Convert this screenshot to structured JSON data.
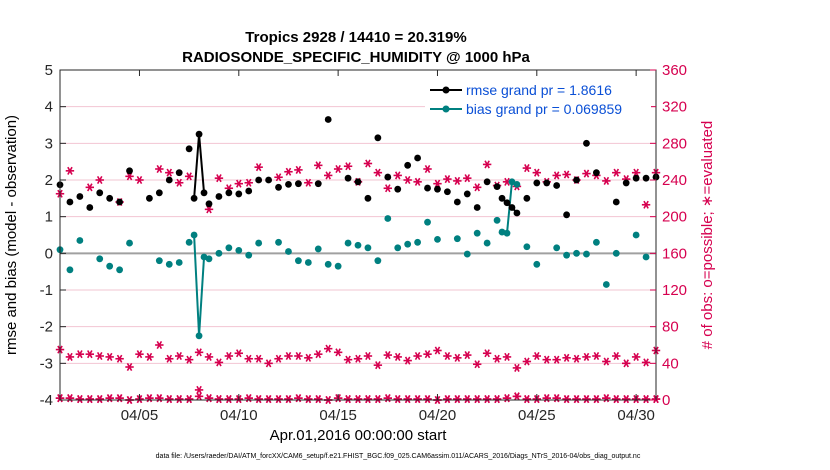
{
  "chart_data": {
    "type": "line",
    "title": "Tropics 2928 / 14410 = 20.319%",
    "subtitle": "RADIOSONDE_SPECIFIC_HUMIDITY @ 1000 hPa",
    "xlabel": "Apr.01,2016 00:00:00 start",
    "ylabel": "rmse and bias (model - observation)",
    "ylabel_right": "# of obs: o=possible; ∗=evaluated",
    "xlim": [
      1,
      31
    ],
    "ylim": [
      -4,
      5
    ],
    "ylim_right": [
      0,
      360
    ],
    "x_ticks": [
      5,
      10,
      15,
      20,
      25,
      30
    ],
    "x_tick_labels": [
      "04/05",
      "04/10",
      "04/15",
      "04/20",
      "04/25",
      "04/30"
    ],
    "y_ticks": [
      -4,
      -3,
      -2,
      -1,
      0,
      1,
      2,
      3,
      4,
      5
    ],
    "y_tick_labels": [
      "-4",
      "-3",
      "-2",
      "-1",
      "0",
      "1",
      "2",
      "3",
      "4",
      "5"
    ],
    "y_right_ticks": [
      0,
      40,
      80,
      120,
      160,
      200,
      240,
      280,
      320,
      360
    ],
    "y_right_tick_labels": [
      "0",
      "40",
      "80",
      "120",
      "160",
      "200",
      "240",
      "280",
      "320",
      "360"
    ],
    "legend": [
      {
        "name": "rmse grand pr = 1.8616",
        "color": "#000000"
      },
      {
        "name": "bias grand pr = 0.069859",
        "color": "#008080"
      }
    ],
    "colors": {
      "rmse": "#000000",
      "bias": "#008080",
      "counts": "#d6004f",
      "zero_line": "#a0a0a0"
    },
    "series": [
      {
        "name": "rmse",
        "x": [
          1.0,
          1.5,
          2.0,
          2.5,
          3.0,
          3.5,
          4.0,
          4.5,
          5.5,
          6.0,
          6.5,
          7.0,
          7.5,
          7.75,
          8.0,
          8.25,
          8.5,
          9.0,
          9.5,
          10.0,
          10.5,
          11.0,
          11.5,
          12.0,
          12.5,
          13.0,
          14.0,
          14.5,
          15.5,
          16.0,
          16.5,
          17.0,
          17.5,
          18.0,
          18.5,
          19.0,
          19.5,
          20.0,
          20.5,
          21.0,
          21.5,
          22.0,
          22.5,
          23.0,
          23.25,
          23.5,
          23.75,
          24.0,
          24.5,
          25.0,
          25.5,
          26.0,
          26.5,
          27.0,
          27.5,
          28.0,
          29.0,
          29.5,
          30.0,
          30.5,
          31.0
        ],
        "y": [
          1.87,
          1.4,
          1.55,
          1.25,
          1.65,
          1.5,
          1.4,
          2.25,
          1.5,
          1.65,
          2.0,
          2.2,
          2.85,
          1.5,
          3.25,
          1.65,
          1.35,
          1.55,
          1.65,
          1.62,
          1.7,
          2.0,
          2.0,
          1.8,
          1.88,
          1.9,
          1.9,
          3.65,
          2.05,
          1.95,
          1.5,
          3.15,
          2.08,
          1.75,
          2.4,
          2.6,
          1.78,
          1.75,
          1.68,
          1.4,
          1.62,
          1.25,
          1.95,
          1.82,
          1.5,
          1.38,
          1.25,
          1.1,
          1.5,
          1.92,
          1.92,
          1.85,
          1.05,
          2.0,
          3.0,
          2.2,
          1.4,
          1.92,
          2.05,
          2.05,
          2.08
        ],
        "connected_segments": [
          [
            7.75,
            8.0,
            8.25
          ],
          [
            23.25,
            23.5,
            23.75,
            24.0
          ]
        ]
      },
      {
        "name": "bias",
        "x": [
          1.0,
          1.5,
          2.0,
          3.0,
          3.5,
          4.0,
          4.5,
          6.0,
          6.5,
          7.0,
          7.5,
          7.75,
          8.0,
          8.25,
          8.5,
          9.0,
          9.5,
          10.0,
          10.5,
          11.0,
          12.0,
          12.5,
          13.0,
          13.5,
          14.0,
          14.5,
          15.0,
          15.5,
          16.0,
          16.5,
          17.0,
          17.5,
          18.0,
          18.5,
          19.0,
          19.5,
          20.0,
          21.0,
          21.5,
          22.0,
          22.5,
          23.0,
          23.25,
          23.5,
          23.75,
          24.0,
          24.5,
          25.0,
          26.0,
          26.5,
          27.0,
          27.5,
          28.0,
          28.5,
          29.0,
          30.0,
          30.5
        ],
        "y": [
          0.1,
          -0.45,
          0.35,
          -0.15,
          -0.35,
          -0.45,
          0.28,
          -0.2,
          -0.3,
          -0.25,
          0.3,
          0.5,
          -2.25,
          -0.1,
          -0.15,
          0.0,
          0.15,
          0.08,
          -0.05,
          0.28,
          0.3,
          0.05,
          -0.2,
          -0.25,
          0.12,
          -0.3,
          -0.35,
          0.28,
          0.22,
          0.15,
          -0.2,
          0.95,
          0.15,
          0.25,
          0.3,
          0.85,
          0.38,
          0.4,
          -0.02,
          0.55,
          0.28,
          0.9,
          0.58,
          0.55,
          1.95,
          1.88,
          0.18,
          -0.3,
          0.15,
          -0.05,
          0.0,
          -0.02,
          0.3,
          -0.85,
          0.0,
          0.5,
          -0.1
        ],
        "connected_segments": [
          [
            7.75,
            8.0,
            8.25
          ],
          [
            23.25,
            23.5,
            23.75,
            24.0
          ]
        ]
      },
      {
        "name": "obs possible",
        "axis": "right",
        "x": [
          1.0,
          1.5,
          2.0,
          2.5,
          3.0,
          3.5,
          4.0,
          4.5,
          5.0,
          5.5,
          6.0,
          6.5,
          7.0,
          7.5,
          8.0,
          8.5,
          9.0,
          9.5,
          10.0,
          10.5,
          11.0,
          11.5,
          12.0,
          12.5,
          13.0,
          13.5,
          14.0,
          14.5,
          15.0,
          15.5,
          16.0,
          16.5,
          17.0,
          17.5,
          18.0,
          18.5,
          19.0,
          19.5,
          20.0,
          20.5,
          21.0,
          21.5,
          22.0,
          22.5,
          23.0,
          23.5,
          24.0,
          24.5,
          25.0,
          25.5,
          26.0,
          26.5,
          27.0,
          27.5,
          28.0,
          28.5,
          29.0,
          29.5,
          30.0,
          30.5,
          31.0
        ],
        "y": [
          2,
          2,
          1,
          1,
          1,
          2,
          2,
          0,
          1,
          2,
          2,
          1,
          1,
          1,
          11,
          2,
          1,
          1,
          1,
          2,
          1,
          1,
          1,
          1,
          2,
          1,
          1,
          0,
          2,
          1,
          1,
          1,
          1,
          2,
          1,
          1,
          1,
          1,
          0,
          1,
          1,
          1,
          1,
          1,
          1,
          2,
          4,
          1,
          1,
          2,
          2,
          1,
          1,
          1,
          1,
          2,
          1,
          1,
          1,
          1,
          1
        ]
      },
      {
        "name": "obs evaluated",
        "axis": "right",
        "x": [
          1.0,
          1.5,
          2.0,
          2.5,
          3.0,
          3.5,
          4.0,
          4.5,
          5.0,
          5.5,
          6.0,
          6.5,
          7.0,
          7.5,
          8.0,
          8.5,
          9.0,
          9.5,
          10.0,
          10.5,
          11.0,
          11.5,
          12.0,
          12.5,
          13.0,
          13.5,
          14.0,
          14.5,
          15.0,
          15.5,
          16.0,
          16.5,
          17.0,
          17.5,
          18.0,
          18.5,
          19.0,
          19.5,
          20.0,
          20.5,
          21.0,
          21.5,
          22.0,
          22.5,
          23.0,
          23.5,
          24.0,
          24.5,
          25.0,
          25.5,
          26.0,
          26.5,
          27.0,
          27.5,
          28.0,
          28.5,
          29.0,
          29.5,
          30.0,
          30.5,
          31.0
        ],
        "y": [
          2,
          2,
          1,
          1,
          1,
          2,
          2,
          0,
          1,
          2,
          2,
          1,
          1,
          1,
          4,
          2,
          1,
          1,
          1,
          2,
          1,
          1,
          1,
          1,
          2,
          1,
          1,
          0,
          2,
          1,
          1,
          1,
          1,
          2,
          1,
          1,
          1,
          1,
          0,
          1,
          1,
          1,
          1,
          1,
          1,
          2,
          4,
          1,
          1,
          2,
          2,
          1,
          1,
          1,
          1,
          2,
          1,
          1,
          1,
          1,
          1
        ]
      },
      {
        "name": "obs possible (upper)",
        "axis": "right",
        "x": [
          1.0,
          1.5,
          2.5,
          3.0,
          4.0,
          4.5,
          5.0,
          6.0,
          6.5,
          7.0,
          7.5,
          8.5,
          9.0,
          9.5,
          10.0,
          10.5,
          11.0,
          12.0,
          12.5,
          13.0,
          13.5,
          14.0,
          14.5,
          15.0,
          15.5,
          16.0,
          16.5,
          17.0,
          17.5,
          18.0,
          18.5,
          19.0,
          19.5,
          20.0,
          20.5,
          21.0,
          21.5,
          22.0,
          22.5,
          23.0,
          23.5,
          24.0,
          24.5,
          25.0,
          25.5,
          26.0,
          26.5,
          27.0,
          27.5,
          28.0,
          28.5,
          29.0,
          29.5,
          30.0,
          30.5,
          31.0
        ],
        "y": [
          225,
          250,
          232,
          240,
          216,
          244,
          240,
          252,
          248,
          237,
          244,
          208,
          242,
          231,
          236,
          237,
          254,
          243,
          249,
          251,
          237,
          256,
          245,
          252,
          255,
          238,
          258,
          248,
          231,
          245,
          240,
          238,
          252,
          236,
          241,
          239,
          242,
          232,
          257,
          234,
          238,
          233,
          253,
          248,
          238,
          245,
          246,
          240,
          247,
          245,
          239,
          248,
          241,
          248,
          213,
          248
        ]
      },
      {
        "name": "obs evaluated (upper)",
        "axis": "right",
        "x": [
          1.0,
          1.5,
          2.0,
          2.5,
          3.0,
          3.5,
          4.0,
          4.5,
          5.0,
          5.5,
          6.0,
          6.5,
          7.0,
          7.5,
          8.0,
          8.5,
          9.0,
          9.5,
          10.0,
          10.5,
          11.0,
          11.5,
          12.0,
          12.5,
          13.0,
          13.5,
          14.0,
          14.5,
          15.0,
          15.5,
          16.0,
          16.5,
          17.0,
          17.5,
          18.0,
          18.5,
          19.0,
          19.5,
          20.0,
          20.5,
          21.0,
          21.5,
          22.0,
          22.5,
          23.0,
          23.5,
          24.0,
          24.5,
          25.0,
          25.5,
          26.0,
          26.5,
          27.0,
          27.5,
          28.0,
          28.5,
          29.0,
          29.5,
          30.0,
          30.5,
          31.0
        ],
        "y": [
          55,
          47,
          50,
          50,
          48,
          47,
          45,
          36,
          50,
          47,
          60,
          45,
          48,
          44,
          52,
          47,
          41,
          48,
          51,
          45,
          45,
          40,
          45,
          48,
          48,
          46,
          50,
          56,
          52,
          44,
          45,
          48,
          38,
          49,
          47,
          43,
          48,
          50,
          54,
          48,
          46,
          49,
          39,
          51,
          45,
          47,
          35,
          42,
          48,
          44,
          44,
          46,
          45,
          47,
          48,
          42,
          48,
          40,
          47,
          41,
          54
        ]
      }
    ]
  },
  "footer": {
    "data_file": "data file: /Users/raeder/DAI/ATM_forcXX/CAM6_setup/f.e21.FHIST_BGC.f09_025.CAM6assim.011/ACARS_2016/Diags_NTrS_2016-04/obs_diag_output.nc"
  }
}
